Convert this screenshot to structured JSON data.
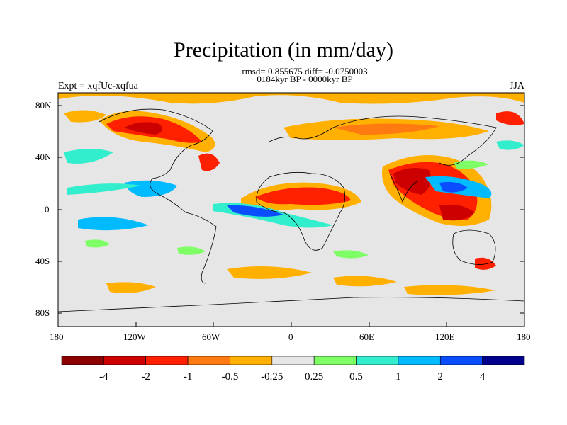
{
  "title": "Precipitation (in mm/day)",
  "stats_line1": "rmsd= 0.855675 diff= -0.0750003",
  "stats_line2": "0184kyr BP - 0000kyr BP",
  "experiment": "Expt = xqfUc-xqfua",
  "season": "JJA",
  "axes": {
    "lat_ticks": [
      "80N",
      "40N",
      "0",
      "40S",
      "80S"
    ],
    "lon_ticks": [
      "180",
      "120W",
      "60W",
      "0",
      "60E",
      "120E",
      "180"
    ]
  },
  "colorbar": {
    "colors": [
      "#8b0000",
      "#cc0000",
      "#ff2000",
      "#ff7a10",
      "#ffb000",
      "#e6e6e6",
      "#7fff66",
      "#33eecc",
      "#00bbff",
      "#0a4dff",
      "#00008b"
    ],
    "labels": [
      "-4",
      "-2",
      "-1",
      "-0.5",
      "-0.25",
      "0.25",
      "0.5",
      "1",
      "2",
      "4"
    ]
  }
}
